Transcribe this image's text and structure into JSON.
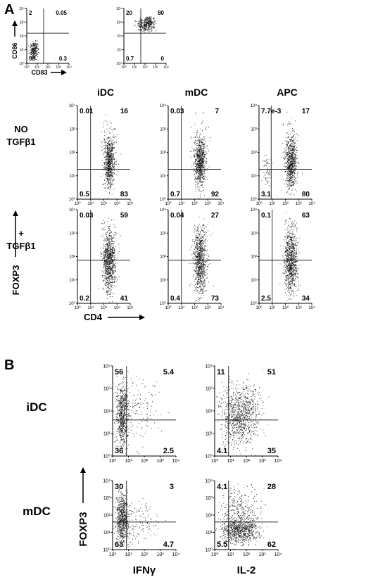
{
  "panel_a": {
    "label": "A",
    "top_plots": [
      {
        "y_label": "CD86",
        "x_label": "CD83",
        "quadrants": [
          "2",
          "0.05",
          "98",
          "0.3"
        ]
      },
      {
        "quadrants": [
          "20",
          "80",
          "0.7",
          "0"
        ]
      }
    ],
    "columns": [
      "iDC",
      "mDC",
      "APC"
    ],
    "rows": [
      {
        "label": [
          "NO",
          "TGFβ1"
        ],
        "plots": [
          {
            "quadrants": [
              "0.01",
              "16",
              "0.5",
              "83"
            ]
          },
          {
            "quadrants": [
              "0.03",
              "7",
              "0.7",
              "92"
            ]
          },
          {
            "quadrants": [
              "7.7e-3",
              "17",
              "3.1",
              "80"
            ]
          }
        ]
      },
      {
        "label": [
          "+",
          "TGFβ1"
        ],
        "plots": [
          {
            "quadrants": [
              "0.03",
              "59",
              "0.2",
              "41"
            ]
          },
          {
            "quadrants": [
              "0.04",
              "27",
              "0.4",
              "73"
            ]
          },
          {
            "quadrants": [
              "0.1",
              "63",
              "2.5",
              "34"
            ]
          }
        ]
      }
    ],
    "y_label": "FOXP3",
    "x_label": "CD4"
  },
  "panel_b": {
    "label": "B",
    "rows": [
      {
        "label": "iDC",
        "plots": [
          {
            "quadrants": [
              "56",
              "5.4",
              "36",
              "2.5"
            ]
          },
          {
            "quadrants": [
              "11",
              "51",
              "4.1",
              "35"
            ]
          }
        ]
      },
      {
        "label": "mDC",
        "plots": [
          {
            "quadrants": [
              "30",
              "3",
              "63",
              "4.7"
            ]
          },
          {
            "quadrants": [
              "4.1",
              "28",
              "5.5",
              "62"
            ]
          }
        ]
      }
    ],
    "x_labels": [
      "IFNγ",
      "IL-2"
    ],
    "y_label": "FOXP3"
  },
  "ticks": [
    "10⁰",
    "10¹",
    "10²",
    "10³",
    "10⁴"
  ]
}
